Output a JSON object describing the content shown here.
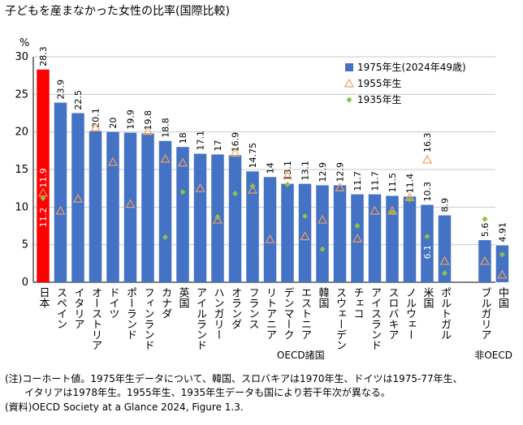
{
  "title": "子どもを産まなかった女性の比率(国際比較)",
  "chart_data": {
    "type": "bar",
    "ylabel": "%",
    "ylim": [
      0,
      30
    ],
    "yticks": [
      0,
      5,
      10,
      15,
      20,
      25,
      30
    ],
    "categories": [
      "日本",
      "スペイン",
      "イタリア",
      "オーストリア",
      "ドイツ",
      "ポーランド",
      "フィンランド",
      "カナダ",
      "英国",
      "アイルランド",
      "ハンガリー",
      "オランダ",
      "フランス",
      "リトアニア",
      "デンマーク",
      "エストニア",
      "韓国",
      "スウェーデン",
      "チェコ",
      "アイスランド",
      "スロバキア",
      "ノルウェー",
      "米国",
      "ポルトガル",
      "ブルガリア",
      "中国"
    ],
    "groups": [
      {
        "label": "OECD諸国",
        "count": 24
      },
      {
        "label": "非OECD",
        "count": 2
      }
    ],
    "series": [
      {
        "name": "1975年生(2024年49歳)",
        "type": "bar",
        "values": [
          28.3,
          23.9,
          22.5,
          20.1,
          20,
          19.9,
          19.8,
          18.8,
          18,
          17.1,
          17,
          16.9,
          14.75,
          14,
          13.1,
          13.1,
          12.9,
          12.9,
          11.7,
          11.7,
          11.5,
          11.4,
          10.3,
          8.9,
          5.6,
          4.91
        ],
        "labels": [
          "28.3",
          "23.9",
          "22.5",
          "20.1",
          "20",
          "19.9",
          "19.8",
          "18.8",
          "18",
          "17.1",
          "17",
          "16.9",
          "14.75",
          "14",
          "13.1",
          "13.1",
          "12.9",
          "12.9",
          "11.7",
          "11.7",
          "11.5",
          "11.4",
          "10.3",
          "8.9",
          "5.6",
          "4.91"
        ]
      },
      {
        "name": "1955年生",
        "type": "scatter",
        "marker": "triangle",
        "values": [
          11.9,
          9.5,
          11.1,
          20.6,
          16.0,
          10.4,
          20.1,
          16.4,
          15.9,
          12.5,
          8.3,
          17.2,
          12.3,
          5.7,
          14.2,
          6.1,
          8.3,
          12.6,
          5.8,
          9.5,
          9.5,
          11.3,
          16.3,
          2.8,
          2.8,
          1.0
        ],
        "labels": {
          "0": "11.9",
          "22": "16.3"
        }
      },
      {
        "name": "1935年生",
        "type": "scatter",
        "marker": "diamond",
        "values": [
          11.2,
          null,
          null,
          null,
          null,
          null,
          null,
          6.0,
          12.0,
          null,
          8.7,
          11.8,
          12.8,
          null,
          13.0,
          8.8,
          4.4,
          null,
          7.5,
          null,
          9.3,
          11.0,
          6.1,
          1.2,
          8.4,
          3.7
        ],
        "labels": {
          "0": "11.2",
          "22": "6.1"
        }
      }
    ],
    "highlight_index": 0,
    "colors": {
      "bar": "#4472c4",
      "highlight": "#ff0000",
      "triangle": "#f0a060",
      "diamond": "#8fbf4a",
      "grid": "#c8c8c8"
    },
    "legend_position": "top-right",
    "grid": true
  },
  "notes": [
    "(注)コーホート値。1975年生データについて、韓国、スロバキアは1970年生、ドイツは1975-77年生、",
    "イタリアは1978年生。1955年生、1935年生データも国により若干年次が異なる。"
  ],
  "source": "(資料)OECD Society at a Glance 2024,  Figure 1.3."
}
